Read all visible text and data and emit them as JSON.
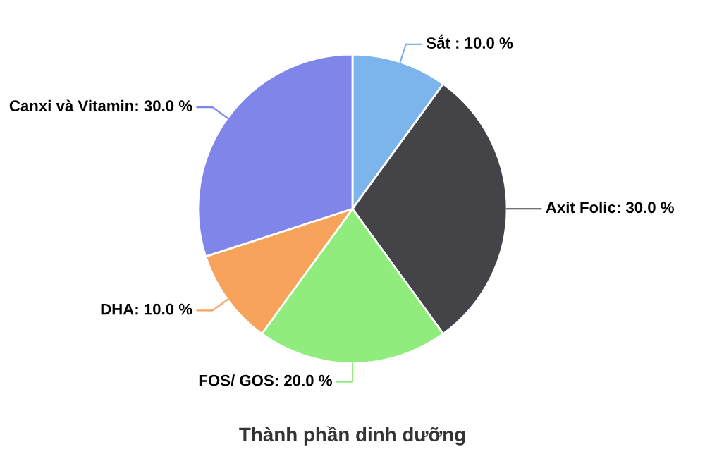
{
  "chart_data": {
    "type": "pie",
    "title": "Thành phần dinh dưỡng",
    "categories": [
      "Sắt ",
      "Axit Folic",
      "FOS/ GOS",
      "DHA",
      "Canxi và Vitamin"
    ],
    "values": [
      10,
      30,
      20,
      10,
      30
    ],
    "value_labels": [
      "10.0 %",
      "30.0 %",
      "20.0 %",
      "10.0 %",
      "30.0 %"
    ],
    "colors": [
      "#7cb5ec",
      "#434348",
      "#90ed7d",
      "#f7a35c",
      "#8085e9"
    ],
    "legend": false
  }
}
